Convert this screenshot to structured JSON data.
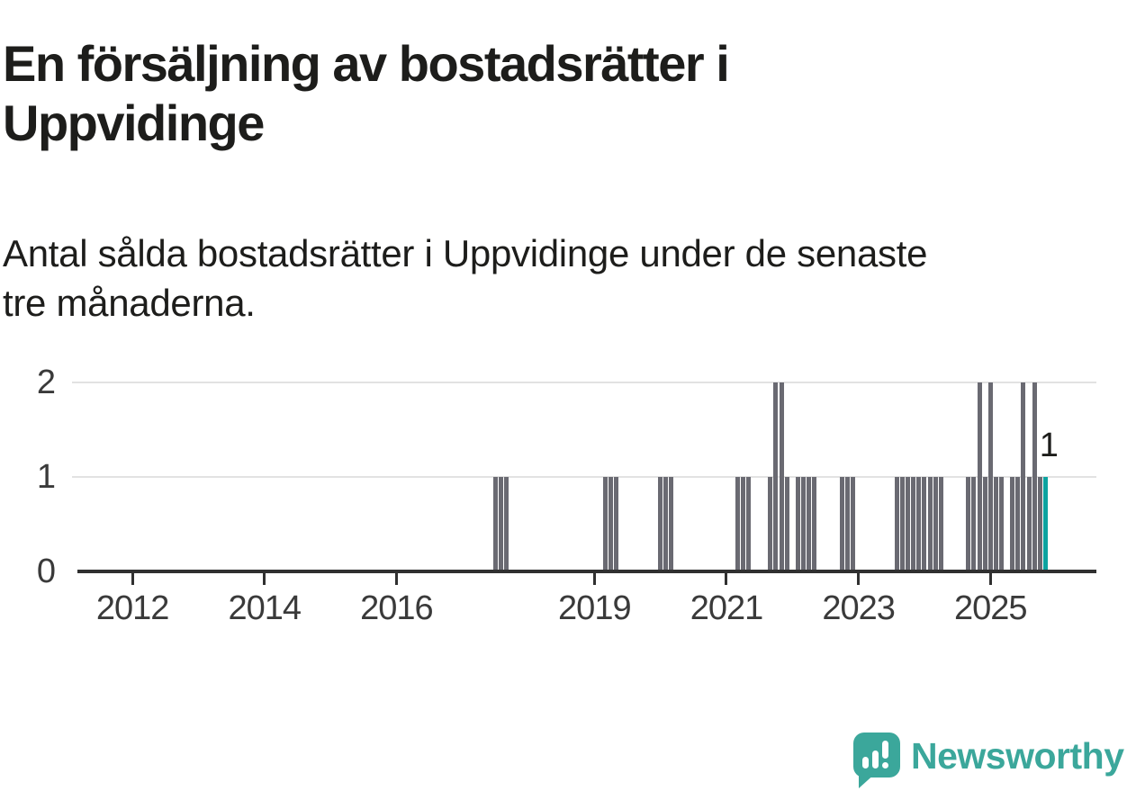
{
  "header": {
    "title_lines": [
      "En försäljning av bostadsrätter i",
      "Uppvidinge"
    ],
    "subtitle_lines": [
      "Antal sålda bostadsrätter i Uppvidinge under de senaste",
      "tre månaderna."
    ]
  },
  "footer": {
    "brand": "Newsworthy"
  },
  "chart_data": {
    "type": "bar",
    "title": "En försäljning av bostadsrätter i Uppvidinge",
    "subtitle": "Antal sålda bostadsrätter i Uppvidinge under de senaste tre månaderna.",
    "x_type": "monthly-time-axis",
    "x_domain_start": "2011-03",
    "x_domain_end": "2026-08",
    "y_ticks": [
      0,
      1,
      2
    ],
    "ylim": [
      0,
      2.2
    ],
    "x_tick_years": [
      2012,
      2014,
      2016,
      2019,
      2021,
      2023,
      2025
    ],
    "grid": "horizontal",
    "legend": "none",
    "colors": {
      "bar": "#6A6A72",
      "highlight": "#0DA3A0",
      "axis": "#303030",
      "grid": "#E2E2E2",
      "text": "#1D1D1B",
      "axis_text": "#3A3A3A",
      "brand": "#3BA79B"
    },
    "annotation": {
      "text": "1",
      "month": "2025-11"
    },
    "default_value": 0,
    "series": [
      {
        "month": "2017-07",
        "value": 1
      },
      {
        "month": "2017-08",
        "value": 1
      },
      {
        "month": "2017-09",
        "value": 1
      },
      {
        "month": "2019-03",
        "value": 1
      },
      {
        "month": "2019-04",
        "value": 1
      },
      {
        "month": "2019-05",
        "value": 1
      },
      {
        "month": "2020-01",
        "value": 1
      },
      {
        "month": "2020-02",
        "value": 1
      },
      {
        "month": "2020-03",
        "value": 1
      },
      {
        "month": "2021-03",
        "value": 1
      },
      {
        "month": "2021-04",
        "value": 1
      },
      {
        "month": "2021-05",
        "value": 1
      },
      {
        "month": "2021-09",
        "value": 1
      },
      {
        "month": "2021-10",
        "value": 2
      },
      {
        "month": "2021-11",
        "value": 2
      },
      {
        "month": "2021-12",
        "value": 1
      },
      {
        "month": "2022-02",
        "value": 1
      },
      {
        "month": "2022-03",
        "value": 1
      },
      {
        "month": "2022-04",
        "value": 1
      },
      {
        "month": "2022-05",
        "value": 1
      },
      {
        "month": "2022-10",
        "value": 1
      },
      {
        "month": "2022-11",
        "value": 1
      },
      {
        "month": "2022-12",
        "value": 1
      },
      {
        "month": "2023-08",
        "value": 1
      },
      {
        "month": "2023-09",
        "value": 1
      },
      {
        "month": "2023-10",
        "value": 1
      },
      {
        "month": "2023-11",
        "value": 1
      },
      {
        "month": "2023-12",
        "value": 1
      },
      {
        "month": "2024-01",
        "value": 1
      },
      {
        "month": "2024-02",
        "value": 1
      },
      {
        "month": "2024-03",
        "value": 1
      },
      {
        "month": "2024-04",
        "value": 1
      },
      {
        "month": "2024-09",
        "value": 1
      },
      {
        "month": "2024-10",
        "value": 1
      },
      {
        "month": "2024-11",
        "value": 2
      },
      {
        "month": "2024-12",
        "value": 1
      },
      {
        "month": "2025-01",
        "value": 2
      },
      {
        "month": "2025-02",
        "value": 1
      },
      {
        "month": "2025-03",
        "value": 1
      },
      {
        "month": "2025-05",
        "value": 1
      },
      {
        "month": "2025-06",
        "value": 1
      },
      {
        "month": "2025-07",
        "value": 2
      },
      {
        "month": "2025-08",
        "value": 1
      },
      {
        "month": "2025-09",
        "value": 2
      },
      {
        "month": "2025-10",
        "value": 1
      },
      {
        "month": "2025-11",
        "value": 1,
        "highlight": true
      }
    ]
  }
}
